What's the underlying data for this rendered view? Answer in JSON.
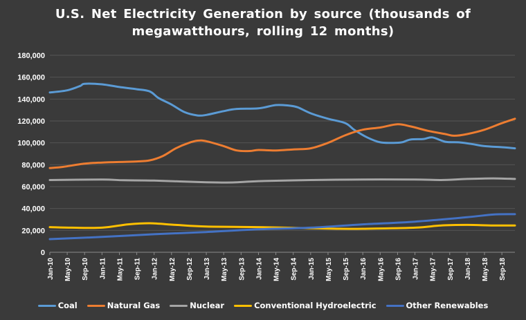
{
  "chart_data": {
    "type": "line",
    "title": "U.S. Net Electricity Generation by source (thousands of megawatthours, rolling 12 months)",
    "xlabel": "",
    "ylabel": "",
    "ylim": [
      0,
      180000
    ],
    "yticks": [
      0,
      20000,
      40000,
      60000,
      80000,
      100000,
      120000,
      140000,
      160000,
      180000
    ],
    "ytick_labels": [
      "0",
      "20,000",
      "40,000",
      "60,000",
      "80,000",
      "100,000",
      "120,000",
      "140,000",
      "160,000",
      "180,000"
    ],
    "x_start": "Jan-10",
    "x_end": "Dec-18",
    "x_tick_labels": [
      "Jan-10",
      "May-10",
      "Sep-10",
      "Jan-11",
      "May-11",
      "Sep-11",
      "Jan-12",
      "May-12",
      "Sep-12",
      "Jan-13",
      "May-13",
      "Sep-13",
      "Jan-14",
      "May-14",
      "Sep-14",
      "Jan-15",
      "May-15",
      "Sep-15",
      "Jan-16",
      "May-16",
      "Sep-16",
      "Jan-17",
      "May-17",
      "Sep-17",
      "Jan-18",
      "May-18",
      "Sep-18"
    ],
    "grid": true,
    "legend_position": "bottom",
    "series": [
      {
        "name": "Coal",
        "color": "#5B9BD5",
        "points": [
          [
            "Jan-10",
            146000
          ],
          [
            "May-10",
            148000
          ],
          [
            "Aug-10",
            152000
          ],
          [
            "Sep-10",
            154000
          ],
          [
            "Jan-11",
            153500
          ],
          [
            "May-11",
            151000
          ],
          [
            "Sep-11",
            149000
          ],
          [
            "Dec-11",
            147000
          ],
          [
            "Feb-12",
            141000
          ],
          [
            "May-12",
            135000
          ],
          [
            "Aug-12",
            128000
          ],
          [
            "Nov-12",
            125000
          ],
          [
            "Jan-13",
            125500
          ],
          [
            "May-13",
            129000
          ],
          [
            "Aug-13",
            131000
          ],
          [
            "Jan-14",
            131500
          ],
          [
            "May-14",
            134500
          ],
          [
            "Aug-14",
            134000
          ],
          [
            "Oct-14",
            132500
          ],
          [
            "Jan-15",
            127000
          ],
          [
            "May-15",
            122000
          ],
          [
            "Sep-15",
            118000
          ],
          [
            "Nov-15",
            112000
          ],
          [
            "Feb-16",
            105000
          ],
          [
            "May-16",
            100500
          ],
          [
            "Aug-16",
            100000
          ],
          [
            "Oct-16",
            100500
          ],
          [
            "Dec-16",
            103000
          ],
          [
            "Mar-17",
            103500
          ],
          [
            "May-17",
            105000
          ],
          [
            "Aug-17",
            101000
          ],
          [
            "Nov-17",
            100500
          ],
          [
            "Feb-18",
            99000
          ],
          [
            "May-18",
            97000
          ],
          [
            "Sep-18",
            96000
          ],
          [
            "Dec-18",
            95000
          ]
        ]
      },
      {
        "name": "Natural Gas",
        "color": "#ED7D31",
        "points": [
          [
            "Jan-10",
            77000
          ],
          [
            "Apr-10",
            78000
          ],
          [
            "Sep-10",
            81000
          ],
          [
            "Jan-11",
            82000
          ],
          [
            "May-11",
            82500
          ],
          [
            "Sep-11",
            83000
          ],
          [
            "Dec-11",
            84000
          ],
          [
            "Mar-12",
            88000
          ],
          [
            "Jun-12",
            95000
          ],
          [
            "Sep-12",
            100000
          ],
          [
            "Nov-12",
            102000
          ],
          [
            "Jan-13",
            101500
          ],
          [
            "May-13",
            97000
          ],
          [
            "Aug-13",
            93000
          ],
          [
            "Nov-13",
            92500
          ],
          [
            "Jan-14",
            93500
          ],
          [
            "May-14",
            93000
          ],
          [
            "Sep-14",
            94000
          ],
          [
            "Jan-15",
            95000
          ],
          [
            "May-15",
            100000
          ],
          [
            "Sep-15",
            107000
          ],
          [
            "Jan-16",
            112000
          ],
          [
            "May-16",
            114000
          ],
          [
            "Sep-16",
            117000
          ],
          [
            "Dec-16",
            115000
          ],
          [
            "Apr-17",
            111000
          ],
          [
            "Aug-17",
            108000
          ],
          [
            "Oct-17",
            106500
          ],
          [
            "Jan-18",
            108000
          ],
          [
            "May-18",
            112000
          ],
          [
            "Sep-18",
            118000
          ],
          [
            "Dec-18",
            122000
          ]
        ]
      },
      {
        "name": "Nuclear",
        "color": "#A5A5A5",
        "points": [
          [
            "Jan-10",
            66000
          ],
          [
            "Jan-11",
            66500
          ],
          [
            "Jun-11",
            65800
          ],
          [
            "Jan-12",
            65500
          ],
          [
            "Jan-13",
            64000
          ],
          [
            "Jul-13",
            63800
          ],
          [
            "Jan-14",
            65000
          ],
          [
            "Jan-15",
            66000
          ],
          [
            "Jan-16",
            66500
          ],
          [
            "Jan-17",
            66500
          ],
          [
            "Jul-17",
            66000
          ],
          [
            "Jan-18",
            67000
          ],
          [
            "Jul-18",
            67500
          ],
          [
            "Dec-18",
            67000
          ]
        ]
      },
      {
        "name": "Conventional Hydroelectric",
        "color": "#FFC000",
        "points": [
          [
            "Jan-10",
            23000
          ],
          [
            "Jun-10",
            22500
          ],
          [
            "Jan-11",
            22500
          ],
          [
            "Jul-11",
            25500
          ],
          [
            "Dec-11",
            26500
          ],
          [
            "Jun-12",
            25000
          ],
          [
            "Jan-13",
            23500
          ],
          [
            "Jan-14",
            23000
          ],
          [
            "Jan-15",
            22000
          ],
          [
            "Jul-15",
            21500
          ],
          [
            "Jan-16",
            21500
          ],
          [
            "Jan-17",
            22500
          ],
          [
            "Jul-17",
            24500
          ],
          [
            "Jan-18",
            25000
          ],
          [
            "Jul-18",
            24500
          ],
          [
            "Dec-18",
            24500
          ]
        ]
      },
      {
        "name": "Other Renewables",
        "color": "#4472C4",
        "points": [
          [
            "Jan-10",
            12000
          ],
          [
            "Jan-11",
            14000
          ],
          [
            "Jan-12",
            16500
          ],
          [
            "Jan-13",
            18500
          ],
          [
            "Jan-14",
            21000
          ],
          [
            "Jan-15",
            22500
          ],
          [
            "Jan-16",
            25500
          ],
          [
            "Jan-17",
            28000
          ],
          [
            "Jan-18",
            32000
          ],
          [
            "Jul-18",
            34500
          ],
          [
            "Dec-18",
            34800
          ]
        ]
      }
    ]
  }
}
